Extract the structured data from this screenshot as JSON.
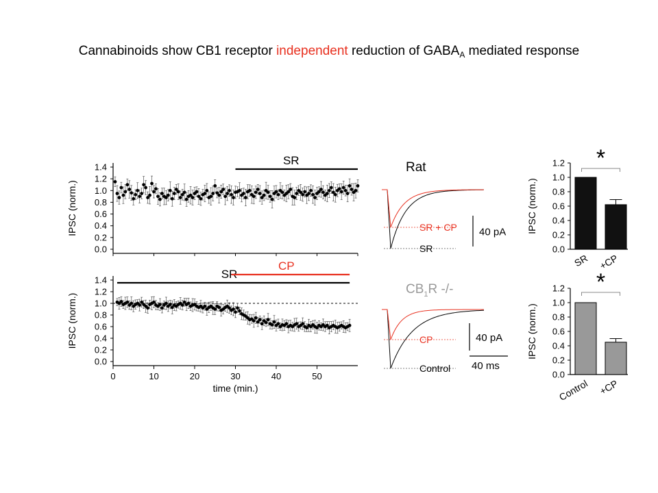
{
  "title": {
    "part1": "Cannabinoids show CB1 receptor ",
    "highlight": "independent",
    "part2": " reduction of GABA",
    "subscript": "A",
    "part3": " mediated response",
    "highlight_color": "#e8301f"
  },
  "colors": {
    "red": "#e8301f",
    "grey_label": "#999999",
    "bar_dark": "#111111",
    "bar_grey": "#999999"
  },
  "chart_data": [
    {
      "type": "scatter",
      "label": "A-top",
      "ylabel": "IPSC (norm.)",
      "ylim": [
        0,
        1.4
      ],
      "yticks": [
        "0.0",
        "0.2",
        "0.4",
        "0.6",
        "0.8",
        "1.0",
        "1.2",
        "1.4"
      ],
      "xlim": [
        0,
        60
      ],
      "drug_bars": [
        {
          "label": "SR",
          "start": 30,
          "end": 60,
          "color": "#000000"
        }
      ],
      "series": [
        {
          "x": [
            0.5,
            1,
            1.5,
            2,
            2.5,
            3,
            3.5,
            4,
            4.5,
            5,
            5.5,
            6,
            6.5,
            7,
            7.5,
            8,
            8.5,
            9,
            9.5,
            10,
            10.5,
            11,
            11.5,
            12,
            12.5,
            13,
            13.5,
            14,
            14.5,
            15,
            15.5,
            16,
            16.5,
            17,
            17.5,
            18,
            18.5,
            19,
            19.5,
            20,
            20.5,
            21,
            21.5,
            22,
            22.5,
            23,
            23.5,
            24,
            24.5,
            25,
            25.5,
            26,
            26.5,
            27,
            27.5,
            28,
            28.5,
            29,
            29.5,
            30,
            30.5,
            31,
            31.5,
            32,
            32.5,
            33,
            33.5,
            34,
            34.5,
            35,
            35.5,
            36,
            36.5,
            37,
            37.5,
            38,
            38.5,
            39,
            39.5,
            40,
            40.5,
            41,
            41.5,
            42,
            42.5,
            43,
            43.5,
            44,
            44.5,
            45,
            45.5,
            46,
            46.5,
            47,
            47.5,
            48,
            48.5,
            49,
            49.5,
            50,
            50.5,
            51,
            51.5,
            52,
            52.5,
            53,
            53.5,
            54,
            54.5,
            55,
            55.5,
            56,
            56.5,
            57,
            57.5,
            58,
            58.5,
            59,
            59.5,
            60
          ],
          "y": [
            1.15,
            0.95,
            0.88,
            1.05,
            0.92,
            0.98,
            1.1,
            1.02,
            0.96,
            0.86,
            0.93,
            1.0,
            0.9,
            0.95,
            1.1,
            1.05,
            0.88,
            0.92,
            1.12,
            0.98,
            1.03,
            0.9,
            0.85,
            0.95,
            0.9,
            0.88,
            0.92,
            1.0,
            0.86,
            0.95,
            1.02,
            0.98,
            0.88,
            0.93,
            0.97,
            0.85,
            0.9,
            0.92,
            0.88,
            0.95,
            0.98,
            0.9,
            0.86,
            0.93,
            0.95,
            1.0,
            0.88,
            0.9,
            0.95,
            1.08,
            0.96,
            0.92,
            0.98,
            1.02,
            0.9,
            0.95,
            1.0,
            0.93,
            0.88,
            0.97,
            0.98,
            1.0,
            0.92,
            0.95,
            0.88,
            0.98,
            1.0,
            0.93,
            0.9,
            0.97,
            1.02,
            0.95,
            0.88,
            0.92,
            1.0,
            0.97,
            0.9,
            0.85,
            0.95,
            0.98,
            0.93,
            1.0,
            0.97,
            0.92,
            0.95,
            0.98,
            1.02,
            0.9,
            0.88,
            0.95,
            1.0,
            0.97,
            0.93,
            0.98,
            0.92,
            0.95,
            1.0,
            0.93,
            0.88,
            0.95,
            0.98,
            1.02,
            0.97,
            0.92,
            0.95,
            1.0,
            1.05,
            0.97,
            0.93,
            1.0,
            1.03,
            0.98,
            1.05,
            1.0,
            0.95,
            1.08,
            1.02,
            0.97,
            1.0,
            1.08
          ],
          "err": 0.12
        }
      ]
    },
    {
      "type": "scatter",
      "label": "A-bottom",
      "ylabel": "IPSC (norm.)",
      "xlabel": "time (min.)",
      "ylim": [
        0,
        1.4
      ],
      "yticks": [
        "0.0",
        "0.2",
        "0.4",
        "0.6",
        "0.8",
        "1.0",
        "1.2",
        "1.4"
      ],
      "xlim": [
        0,
        60
      ],
      "xticks": [
        "0",
        "10",
        "20",
        "30",
        "40",
        "50"
      ],
      "drug_bars": [
        {
          "label": "SR",
          "start": 1,
          "end": 58,
          "color": "#000000"
        },
        {
          "label": "CP",
          "start": 29,
          "end": 58,
          "color": "#e8301f"
        }
      ],
      "reference_line": 1.0,
      "series": [
        {
          "x": [
            1,
            1.5,
            2,
            2.5,
            3,
            3.5,
            4,
            4.5,
            5,
            5.5,
            6,
            6.5,
            7,
            7.5,
            8,
            8.5,
            9,
            9.5,
            10,
            10.5,
            11,
            11.5,
            12,
            12.5,
            13,
            13.5,
            14,
            14.5,
            15,
            15.5,
            16,
            16.5,
            17,
            17.5,
            18,
            18.5,
            19,
            19.5,
            20,
            20.5,
            21,
            21.5,
            22,
            22.5,
            23,
            23.5,
            24,
            24.5,
            25,
            25.5,
            26,
            26.5,
            27,
            27.5,
            28,
            28.5,
            29,
            29.5,
            30,
            30.5,
            31,
            31.5,
            32,
            32.5,
            33,
            33.5,
            34,
            34.5,
            35,
            35.5,
            36,
            36.5,
            37,
            37.5,
            38,
            38.5,
            39,
            39.5,
            40,
            40.5,
            41,
            41.5,
            42,
            42.5,
            43,
            43.5,
            44,
            44.5,
            45,
            45.5,
            46,
            46.5,
            47,
            47.5,
            48,
            48.5,
            49,
            49.5,
            50,
            50.5,
            51,
            51.5,
            52,
            52.5,
            53,
            53.5,
            54,
            54.5,
            55,
            55.5,
            56,
            56.5,
            57,
            57.5,
            58
          ],
          "y": [
            1.02,
            1.0,
            1.03,
            0.98,
            1.0,
            1.02,
            0.97,
            1.0,
            0.95,
            0.98,
            1.0,
            0.97,
            1.02,
            0.98,
            0.95,
            0.92,
            0.98,
            1.0,
            1.02,
            0.97,
            0.95,
            0.98,
            0.92,
            0.97,
            1.0,
            0.95,
            0.98,
            0.93,
            0.97,
            0.95,
            0.98,
            1.0,
            0.97,
            1.02,
            0.98,
            1.0,
            0.95,
            0.97,
            0.98,
            0.95,
            0.93,
            0.95,
            0.92,
            0.95,
            0.9,
            0.93,
            0.95,
            0.92,
            0.9,
            0.95,
            0.93,
            0.88,
            0.9,
            0.93,
            0.95,
            0.92,
            0.88,
            0.9,
            0.85,
            0.92,
            0.87,
            0.82,
            0.8,
            0.78,
            0.75,
            0.72,
            0.73,
            0.7,
            0.75,
            0.68,
            0.72,
            0.65,
            0.7,
            0.67,
            0.72,
            0.65,
            0.63,
            0.68,
            0.62,
            0.65,
            0.6,
            0.63,
            0.62,
            0.65,
            0.6,
            0.62,
            0.6,
            0.63,
            0.65,
            0.6,
            0.62,
            0.65,
            0.6,
            0.58,
            0.62,
            0.6,
            0.63,
            0.6,
            0.58,
            0.62,
            0.6,
            0.63,
            0.6,
            0.62,
            0.58,
            0.6,
            0.62,
            0.6,
            0.58,
            0.6,
            0.62,
            0.6,
            0.58,
            0.6,
            0.62
          ],
          "err": 0.09
        }
      ]
    },
    {
      "type": "line",
      "label": "B-top",
      "title": "Rat",
      "series": [
        {
          "name": "SR + CP",
          "color": "#e8301f"
        },
        {
          "name": "SR",
          "color": "#000000"
        }
      ],
      "scale_bar_y": "40 pA"
    },
    {
      "type": "line",
      "label": "B-bottom",
      "title_main": "CB",
      "title_sub": "1",
      "title_rest": "R -/-",
      "series": [
        {
          "name": "CP",
          "color": "#e8301f"
        },
        {
          "name": "Control",
          "color": "#000000"
        }
      ],
      "scale_bar_y": "40 pA",
      "scale_bar_x": "40 ms"
    },
    {
      "type": "bar",
      "label": "C-top",
      "ylabel": "IPSC (norm.)",
      "categories": [
        "SR",
        "+CP"
      ],
      "values": [
        1.0,
        0.62
      ],
      "errors": [
        0.0,
        0.07
      ],
      "ylim": [
        0,
        1.2
      ],
      "yticks": [
        "0.0",
        "0.2",
        "0.4",
        "0.6",
        "0.8",
        "1.0",
        "1.2"
      ],
      "bar_color": "#111111",
      "significance": "*"
    },
    {
      "type": "bar",
      "label": "C-bottom",
      "ylabel": "IPSC (norm.)",
      "categories": [
        "Control",
        "+CP"
      ],
      "values": [
        1.0,
        0.45
      ],
      "errors": [
        0.0,
        0.05
      ],
      "ylim": [
        0,
        1.2
      ],
      "yticks": [
        "0.0",
        "0.2",
        "0.4",
        "0.6",
        "0.8",
        "1.0",
        "1.2"
      ],
      "bar_color": "#999999",
      "significance": "*"
    }
  ]
}
